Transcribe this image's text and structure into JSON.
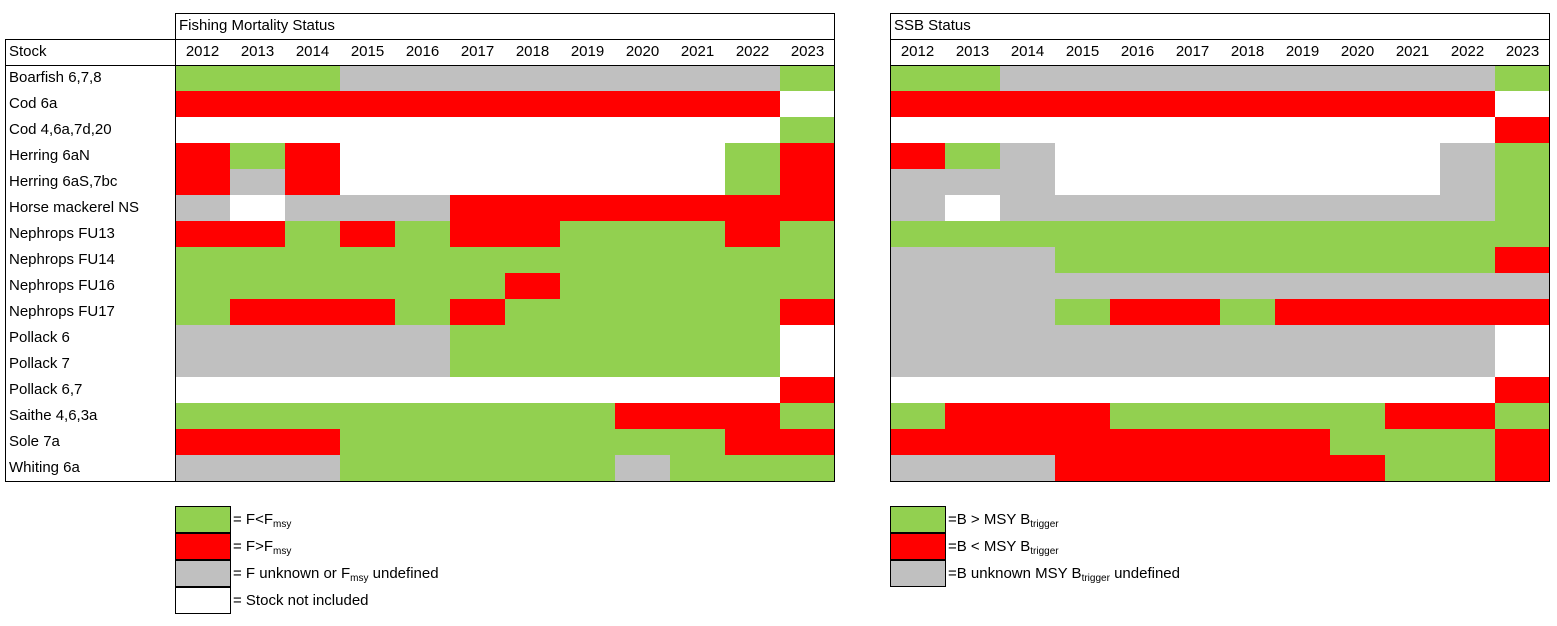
{
  "colors": {
    "G": "#92d050",
    "R": "#ff0000",
    "U": "#c0c0c0",
    "W": "#ffffff"
  },
  "header": {
    "stock_label": "Stock",
    "f_title": "Fishing Mortality Status",
    "ssb_title": "SSB Status"
  },
  "chart_data": [
    {
      "type": "heatmap",
      "title": "Fishing Mortality Status",
      "years": [
        "2012",
        "2013",
        "2014",
        "2015",
        "2016",
        "2017",
        "2018",
        "2019",
        "2020",
        "2021",
        "2022",
        "2023"
      ],
      "stocks": [
        "Boarfish 6,7,8",
        "Cod 6a",
        "Cod 4,6a,7d,20",
        "Herring 6aN",
        "Herring 6aS,7bc",
        "Horse mackerel NS",
        "Nephrops FU13",
        "Nephrops FU14",
        "Nephrops FU16",
        "Nephrops FU17",
        "Pollack 6",
        "Pollack 7",
        "Pollack 6,7",
        "Saithe 4,6,3a",
        "Sole 7a",
        "Whiting 6a"
      ],
      "values": [
        [
          "G",
          "G",
          "G",
          "U",
          "U",
          "U",
          "U",
          "U",
          "U",
          "U",
          "U",
          "G"
        ],
        [
          "R",
          "R",
          "R",
          "R",
          "R",
          "R",
          "R",
          "R",
          "R",
          "R",
          "R",
          "W"
        ],
        [
          "W",
          "W",
          "W",
          "W",
          "W",
          "W",
          "W",
          "W",
          "W",
          "W",
          "W",
          "G"
        ],
        [
          "R",
          "G",
          "R",
          "W",
          "W",
          "W",
          "W",
          "W",
          "W",
          "W",
          "G",
          "R"
        ],
        [
          "R",
          "U",
          "R",
          "W",
          "W",
          "W",
          "W",
          "W",
          "W",
          "W",
          "G",
          "R"
        ],
        [
          "U",
          "W",
          "U",
          "U",
          "U",
          "R",
          "R",
          "R",
          "R",
          "R",
          "R",
          "R"
        ],
        [
          "R",
          "R",
          "G",
          "R",
          "G",
          "R",
          "R",
          "G",
          "G",
          "G",
          "R",
          "G"
        ],
        [
          "G",
          "G",
          "G",
          "G",
          "G",
          "G",
          "G",
          "G",
          "G",
          "G",
          "G",
          "G"
        ],
        [
          "G",
          "G",
          "G",
          "G",
          "G",
          "G",
          "R",
          "G",
          "G",
          "G",
          "G",
          "G"
        ],
        [
          "G",
          "R",
          "R",
          "R",
          "G",
          "R",
          "G",
          "G",
          "G",
          "G",
          "G",
          "R"
        ],
        [
          "U",
          "U",
          "U",
          "U",
          "U",
          "G",
          "G",
          "G",
          "G",
          "G",
          "G",
          "W"
        ],
        [
          "U",
          "U",
          "U",
          "U",
          "U",
          "G",
          "G",
          "G",
          "G",
          "G",
          "G",
          "W"
        ],
        [
          "W",
          "W",
          "W",
          "W",
          "W",
          "W",
          "W",
          "W",
          "W",
          "W",
          "W",
          "R"
        ],
        [
          "G",
          "G",
          "G",
          "G",
          "G",
          "G",
          "G",
          "G",
          "R",
          "R",
          "R",
          "G"
        ],
        [
          "R",
          "R",
          "R",
          "G",
          "G",
          "G",
          "G",
          "G",
          "G",
          "G",
          "R",
          "R"
        ],
        [
          "U",
          "U",
          "U",
          "G",
          "G",
          "G",
          "G",
          "G",
          "U",
          "G",
          "G",
          "G"
        ]
      ],
      "legend": [
        {
          "code": "G",
          "prefix": "= F<F",
          "sub": "msy",
          "suffix": ""
        },
        {
          "code": "R",
          "prefix": "= F>F",
          "sub": "msy",
          "suffix": ""
        },
        {
          "code": "U",
          "prefix": "= F unknown or F",
          "sub": "msy",
          "suffix": " undefined"
        },
        {
          "code": "W",
          "prefix": "= Stock not included",
          "sub": "",
          "suffix": ""
        }
      ]
    },
    {
      "type": "heatmap",
      "title": "SSB Status",
      "years": [
        "2012",
        "2013",
        "2014",
        "2015",
        "2016",
        "2017",
        "2018",
        "2019",
        "2020",
        "2021",
        "2022",
        "2023"
      ],
      "stocks": [
        "Boarfish 6,7,8",
        "Cod 6a",
        "Cod 4,6a,7d,20",
        "Herring 6aN",
        "Herring 6aS,7bc",
        "Horse mackerel NS",
        "Nephrops FU13",
        "Nephrops FU14",
        "Nephrops FU16",
        "Nephrops FU17",
        "Pollack 6",
        "Pollack 7",
        "Pollack 6,7",
        "Saithe 4,6,3a",
        "Sole 7a",
        "Whiting 6a"
      ],
      "values": [
        [
          "G",
          "G",
          "U",
          "U",
          "U",
          "U",
          "U",
          "U",
          "U",
          "U",
          "U",
          "G"
        ],
        [
          "R",
          "R",
          "R",
          "R",
          "R",
          "R",
          "R",
          "R",
          "R",
          "R",
          "R",
          "W"
        ],
        [
          "W",
          "W",
          "W",
          "W",
          "W",
          "W",
          "W",
          "W",
          "W",
          "W",
          "W",
          "R"
        ],
        [
          "R",
          "G",
          "U",
          "W",
          "W",
          "W",
          "W",
          "W",
          "W",
          "W",
          "U",
          "G"
        ],
        [
          "U",
          "U",
          "U",
          "W",
          "W",
          "W",
          "W",
          "W",
          "W",
          "W",
          "U",
          "G"
        ],
        [
          "U",
          "W",
          "U",
          "U",
          "U",
          "U",
          "U",
          "U",
          "U",
          "U",
          "U",
          "G"
        ],
        [
          "G",
          "G",
          "G",
          "G",
          "G",
          "G",
          "G",
          "G",
          "G",
          "G",
          "G",
          "G"
        ],
        [
          "U",
          "U",
          "U",
          "G",
          "G",
          "G",
          "G",
          "G",
          "G",
          "G",
          "G",
          "R"
        ],
        [
          "U",
          "U",
          "U",
          "U",
          "U",
          "U",
          "U",
          "U",
          "U",
          "U",
          "U",
          "U"
        ],
        [
          "U",
          "U",
          "U",
          "G",
          "R",
          "R",
          "G",
          "R",
          "R",
          "R",
          "R",
          "R"
        ],
        [
          "U",
          "U",
          "U",
          "U",
          "U",
          "U",
          "U",
          "U",
          "U",
          "U",
          "U",
          "W"
        ],
        [
          "U",
          "U",
          "U",
          "U",
          "U",
          "U",
          "U",
          "U",
          "U",
          "U",
          "U",
          "W"
        ],
        [
          "W",
          "W",
          "W",
          "W",
          "W",
          "W",
          "W",
          "W",
          "W",
          "W",
          "W",
          "R"
        ],
        [
          "G",
          "R",
          "R",
          "R",
          "G",
          "G",
          "G",
          "G",
          "G",
          "R",
          "R",
          "G"
        ],
        [
          "R",
          "R",
          "R",
          "R",
          "R",
          "R",
          "R",
          "R",
          "G",
          "G",
          "G",
          "R"
        ],
        [
          "U",
          "U",
          "U",
          "R",
          "R",
          "R",
          "R",
          "R",
          "R",
          "G",
          "G",
          "R"
        ]
      ],
      "legend": [
        {
          "code": "G",
          "prefix": "=B > MSY B",
          "sub": "trigger",
          "suffix": ""
        },
        {
          "code": "R",
          "prefix": "=B < MSY B",
          "sub": "trigger",
          "suffix": ""
        },
        {
          "code": "U",
          "prefix": "=B unknown MSY B",
          "sub": "trigger",
          "suffix": " undefined"
        }
      ]
    }
  ]
}
